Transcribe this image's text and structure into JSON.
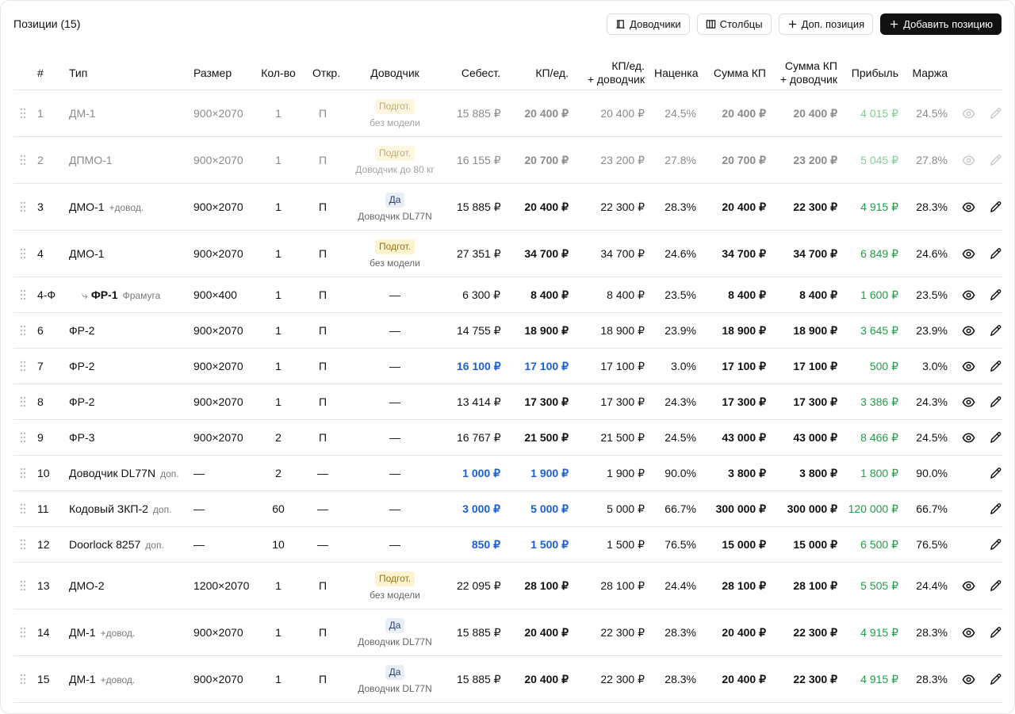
{
  "header": {
    "title": "Позиции (15)",
    "buttons": [
      "Доводчики",
      "Столбцы",
      "Доп. позиция",
      "Добавить позицию"
    ]
  },
  "table": {
    "columns": [
      "#",
      "Тип",
      "Размер",
      "Кол-во",
      "Откр.",
      "Доводчик",
      "Себест.",
      "КП/ед.",
      "КП/ед.\n+ доводчик",
      "Наценка",
      "Сумма КП",
      "Сумма КП\n+ доводчик",
      "Прибыль",
      "Маржа"
    ],
    "rows": [
      {
        "num": "1",
        "type": "ДМ-1",
        "size": "900×2070",
        "qty": "1",
        "open": "П",
        "closer": {
          "badge": "Подгот.",
          "note": "без модели"
        },
        "cost": "15 885 ₽",
        "kp": "20 400 ₽",
        "kp_closer": "20 400 ₽",
        "markup": "24.5%",
        "sum": "20 400 ₽",
        "sum_closer": "20 400 ₽",
        "profit": "4 015 ₽",
        "margin": "24.5%",
        "muted": true,
        "viewable": true
      },
      {
        "num": "2",
        "type": "ДПМО-1",
        "size": "900×2070",
        "qty": "1",
        "open": "П",
        "closer": {
          "badge": "Подгот.",
          "note": "Доводчик до 80 кг"
        },
        "cost": "16 155 ₽",
        "kp": "20 700 ₽",
        "kp_closer": "23 200 ₽",
        "markup": "27.8%",
        "sum": "20 700 ₽",
        "sum_closer": "23 200 ₽",
        "profit": "5 045 ₽",
        "margin": "27.8%",
        "muted": true,
        "viewable": true
      },
      {
        "num": "3",
        "type": "ДМО-1",
        "tag": "+довод.",
        "size": "900×2070",
        "qty": "1",
        "open": "П",
        "closer": {
          "badge": "Да",
          "note": "Доводчик DL77N"
        },
        "cost": "15 885 ₽",
        "kp": "20 400 ₽",
        "kp_closer": "22 300 ₽",
        "markup": "28.3%",
        "sum": "20 400 ₽",
        "sum_closer": "22 300 ₽",
        "profit": "4 915 ₽",
        "margin": "28.3%",
        "viewable": true
      },
      {
        "num": "4",
        "type": "ДМО-1",
        "size": "900×2070",
        "qty": "1",
        "open": "П",
        "closer": {
          "badge": "Подгот.",
          "note": "без модели"
        },
        "cost": "27 351 ₽",
        "kp": "34 700 ₽",
        "kp_closer": "34 700 ₽",
        "markup": "24.6%",
        "sum": "34 700 ₽",
        "sum_closer": "34 700 ₽",
        "profit": "6 849 ₽",
        "margin": "24.6%",
        "viewable": true
      },
      {
        "num": "4-Ф",
        "type": "ФР-1",
        "tag": "Фрамуга",
        "child": true,
        "size": "900×400",
        "qty": "1",
        "open": "П",
        "closer": "—",
        "cost": "6 300 ₽",
        "kp": "8 400 ₽",
        "kp_closer": "8 400 ₽",
        "markup": "23.5%",
        "sum": "8 400 ₽",
        "sum_closer": "8 400 ₽",
        "profit": "1 600 ₽",
        "margin": "23.5%",
        "viewable": true
      },
      {
        "num": "6",
        "type": "ФР-2",
        "size": "900×2070",
        "qty": "1",
        "open": "П",
        "closer": "—",
        "cost": "14 755 ₽",
        "kp": "18 900 ₽",
        "kp_closer": "18 900 ₽",
        "markup": "23.9%",
        "sum": "18 900 ₽",
        "sum_closer": "18 900 ₽",
        "profit": "3 645 ₽",
        "margin": "23.9%",
        "viewable": true
      },
      {
        "num": "7",
        "type": "ФР-2",
        "size": "900×2070",
        "qty": "1",
        "open": "П",
        "closer": "—",
        "cost": "16 100 ₽",
        "kp": "17 100 ₽",
        "kp_closer": "17 100 ₽",
        "markup": "3.0%",
        "sum": "17 100 ₽",
        "sum_closer": "17 100 ₽",
        "profit": "500 ₽",
        "margin": "3.0%",
        "highlight": true,
        "viewable": true
      },
      {
        "num": "8",
        "type": "ФР-2",
        "size": "900×2070",
        "qty": "1",
        "open": "П",
        "closer": "—",
        "cost": "13 414 ₽",
        "kp": "17 300 ₽",
        "kp_closer": "17 300 ₽",
        "markup": "24.3%",
        "sum": "17 300 ₽",
        "sum_closer": "17 300 ₽",
        "profit": "3 386 ₽",
        "margin": "24.3%",
        "viewable": true
      },
      {
        "num": "9",
        "type": "ФР-3",
        "size": "900×2070",
        "qty": "2",
        "open": "П",
        "closer": "—",
        "cost": "16 767 ₽",
        "kp": "21 500 ₽",
        "kp_closer": "21 500 ₽",
        "markup": "24.5%",
        "sum": "43 000 ₽",
        "sum_closer": "43 000 ₽",
        "profit": "8 466 ₽",
        "margin": "24.5%",
        "viewable": true
      },
      {
        "num": "10",
        "type": "Доводчик DL77N",
        "tag": "доп.",
        "size": "—",
        "qty": "2",
        "open": "—",
        "closer": "—",
        "cost": "1 000 ₽",
        "kp": "1 900 ₽",
        "kp_closer": "1 900 ₽",
        "markup": "90.0%",
        "sum": "3 800 ₽",
        "sum_closer": "3 800 ₽",
        "profit": "1 800 ₽",
        "margin": "90.0%",
        "highlight": true,
        "viewable": false
      },
      {
        "num": "11",
        "type": "Кодовый ЗКП-2",
        "tag": "доп.",
        "size": "—",
        "qty": "60",
        "open": "—",
        "closer": "—",
        "cost": "3 000 ₽",
        "kp": "5 000 ₽",
        "kp_closer": "5 000 ₽",
        "markup": "66.7%",
        "sum": "300 000 ₽",
        "sum_closer": "300 000 ₽",
        "profit": "120 000 ₽",
        "margin": "66.7%",
        "highlight": true,
        "viewable": false
      },
      {
        "num": "12",
        "type": "Doorlock 8257",
        "tag": "доп.",
        "size": "—",
        "qty": "10",
        "open": "—",
        "closer": "—",
        "cost": "850 ₽",
        "kp": "1 500 ₽",
        "kp_closer": "1 500 ₽",
        "markup": "76.5%",
        "sum": "15 000 ₽",
        "sum_closer": "15 000 ₽",
        "profit": "6 500 ₽",
        "margin": "76.5%",
        "highlight": true,
        "viewable": false
      },
      {
        "num": "13",
        "type": "ДМО-2",
        "size": "1200×2070",
        "qty": "1",
        "open": "П",
        "closer": {
          "badge": "Подгот.",
          "note": "без модели"
        },
        "cost": "22 095 ₽",
        "kp": "28 100 ₽",
        "kp_closer": "28 100 ₽",
        "markup": "24.4%",
        "sum": "28 100 ₽",
        "sum_closer": "28 100 ₽",
        "profit": "5 505 ₽",
        "margin": "24.4%",
        "viewable": true
      },
      {
        "num": "14",
        "type": "ДМ-1",
        "tag": "+довод.",
        "size": "900×2070",
        "qty": "1",
        "open": "П",
        "closer": {
          "badge": "Да",
          "note": "Доводчик DL77N"
        },
        "cost": "15 885 ₽",
        "kp": "20 400 ₽",
        "kp_closer": "22 300 ₽",
        "markup": "28.3%",
        "sum": "20 400 ₽",
        "sum_closer": "22 300 ₽",
        "profit": "4 915 ₽",
        "margin": "28.3%",
        "viewable": true
      },
      {
        "num": "15",
        "type": "ДМ-1",
        "tag": "+довод.",
        "size": "900×2070",
        "qty": "1",
        "open": "П",
        "closer": {
          "badge": "Да",
          "note": "Доводчик DL77N"
        },
        "cost": "15 885 ₽",
        "kp": "20 400 ₽",
        "kp_closer": "22 300 ₽",
        "markup": "28.3%",
        "sum": "20 400 ₽",
        "sum_closer": "22 300 ₽",
        "profit": "4 915 ₽",
        "margin": "28.3%",
        "viewable": true
      }
    ]
  }
}
